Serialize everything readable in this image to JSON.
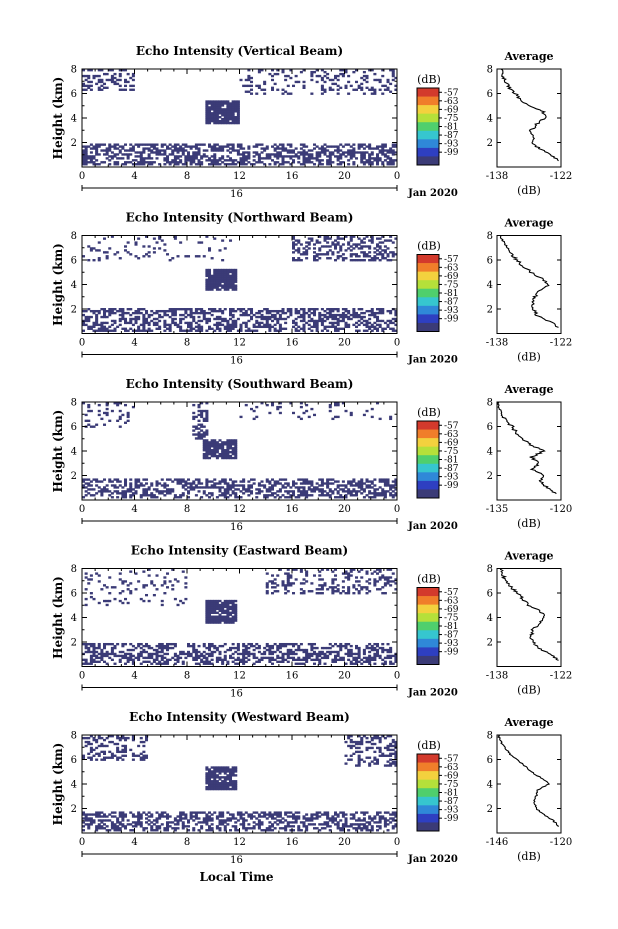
{
  "figure": {
    "xlabel_common": "Local Time",
    "date_label": "Jan 2020",
    "day_label": "16",
    "cbar_label": "(dB)",
    "avg_title": "Average",
    "avg_xlabel": "(dB)",
    "ylabel": "Height (km)",
    "empty_color": "#ffffff",
    "low_color": "#3b3b77"
  },
  "chart_data": [
    {
      "type": "heatmap",
      "title": "Echo Intensity (Vertical Beam)",
      "xlabel": "",
      "ylabel": "Height (km)",
      "xlim": [
        0,
        24
      ],
      "ylim": [
        0,
        8
      ],
      "x_ticks": [
        "0",
        "4",
        "8",
        "12",
        "16",
        "20",
        "0"
      ],
      "y_ticks": [
        "2",
        "4",
        "6",
        "8"
      ],
      "colorbar": {
        "label": "(dB)",
        "ticks": [
          "-57",
          "-63",
          "-69",
          "-75",
          "-81",
          "-87",
          "-93",
          "-99"
        ]
      },
      "low_regions": [
        {
          "t0": 0,
          "t1": 24,
          "h0": 0.2,
          "h1": 1.9,
          "density": 0.55
        },
        {
          "t0": 9.5,
          "t1": 12,
          "h0": 3.6,
          "h1": 5.5,
          "density": 0.9
        },
        {
          "t0": 0,
          "t1": 4,
          "h0": 6.2,
          "h1": 8,
          "density": 0.35
        },
        {
          "t0": 12,
          "t1": 24,
          "h0": 6.0,
          "h1": 8,
          "density": 0.22
        }
      ],
      "average": {
        "title": "Average",
        "xlabel": "(dB)",
        "x_ticks": [
          "-138",
          "-122"
        ],
        "xlim": [
          -138,
          -122
        ],
        "heights": [
          0.5,
          1.0,
          1.5,
          2.0,
          2.5,
          3.0,
          3.5,
          4.0,
          4.5,
          5.0,
          5.5,
          6.0,
          6.5,
          7.0,
          7.5,
          8.0
        ],
        "values": [
          -122.5,
          -124.5,
          -127.5,
          -129,
          -129,
          -129.5,
          -128,
          -126,
          -126.5,
          -130,
          -132,
          -133.5,
          -135,
          -136,
          -136.5,
          -137
        ]
      }
    },
    {
      "type": "heatmap",
      "title": "Echo Intensity (Northward Beam)",
      "xlabel": "",
      "ylabel": "Height (km)",
      "xlim": [
        0,
        24
      ],
      "ylim": [
        0,
        8
      ],
      "x_ticks": [
        "0",
        "4",
        "8",
        "12",
        "16",
        "20",
        "0"
      ],
      "y_ticks": [
        "2",
        "4",
        "6",
        "8"
      ],
      "colorbar": {
        "label": "(dB)",
        "ticks": [
          "-57",
          "-63",
          "-69",
          "-75",
          "-81",
          "-87",
          "-93",
          "-99"
        ]
      },
      "low_regions": [
        {
          "t0": 0,
          "t1": 24,
          "h0": 0.2,
          "h1": 2.0,
          "density": 0.5
        },
        {
          "t0": 9.5,
          "t1": 11.8,
          "h0": 3.5,
          "h1": 5.2,
          "density": 0.9
        },
        {
          "t0": 16,
          "t1": 24,
          "h0": 6.0,
          "h1": 8,
          "density": 0.35
        },
        {
          "t0": 0,
          "t1": 12,
          "h0": 6.0,
          "h1": 8,
          "density": 0.08
        }
      ],
      "average": {
        "title": "Average",
        "xlabel": "(dB)",
        "x_ticks": [
          "-138",
          "-122"
        ],
        "xlim": [
          -138,
          -122
        ],
        "heights": [
          0.5,
          1.0,
          1.5,
          2.0,
          2.5,
          3.0,
          3.5,
          4.0,
          4.5,
          5.0,
          5.5,
          6.0,
          6.5,
          7.0,
          7.5,
          8.0
        ],
        "values": [
          -122.5,
          -125,
          -128,
          -129,
          -129,
          -128.5,
          -127.5,
          -125,
          -127,
          -129.5,
          -131.5,
          -133,
          -134.5,
          -135.5,
          -136.5,
          -137
        ]
      }
    },
    {
      "type": "heatmap",
      "title": "Echo Intensity (Southward Beam)",
      "xlabel": "",
      "ylabel": "Height (km)",
      "xlim": [
        0,
        24
      ],
      "ylim": [
        0,
        8
      ],
      "x_ticks": [
        "0",
        "4",
        "8",
        "12",
        "16",
        "20",
        "0"
      ],
      "y_ticks": [
        "2",
        "4",
        "6",
        "8"
      ],
      "colorbar": {
        "label": "(dB)",
        "ticks": [
          "-57",
          "-63",
          "-69",
          "-75",
          "-81",
          "-87",
          "-93",
          "-99"
        ]
      },
      "low_regions": [
        {
          "t0": 0,
          "t1": 24,
          "h0": 0.2,
          "h1": 1.8,
          "density": 0.5
        },
        {
          "t0": 9.2,
          "t1": 11.7,
          "h0": 3.3,
          "h1": 5.0,
          "density": 0.85
        },
        {
          "t0": 8.5,
          "t1": 9.5,
          "h0": 5.0,
          "h1": 8,
          "density": 0.45
        },
        {
          "t0": 0,
          "t1": 4,
          "h0": 6.0,
          "h1": 8,
          "density": 0.18
        },
        {
          "t0": 12,
          "t1": 24,
          "h0": 6.5,
          "h1": 8,
          "density": 0.08
        }
      ],
      "average": {
        "title": "Average",
        "xlabel": "(dB)",
        "x_ticks": [
          "-135",
          "-120"
        ],
        "xlim": [
          -135,
          -120
        ],
        "heights": [
          0.5,
          1.0,
          1.5,
          2.0,
          2.5,
          3.0,
          3.5,
          4.0,
          4.5,
          5.0,
          5.5,
          6.0,
          6.5,
          7.0,
          7.5,
          8.0
        ],
        "values": [
          -121,
          -123,
          -125,
          -124,
          -127,
          -125,
          -127,
          -124,
          -127,
          -129,
          -130.5,
          -131.5,
          -133,
          -134,
          -134.5,
          -135
        ]
      }
    },
    {
      "type": "heatmap",
      "title": "Echo Intensity (Eastward Beam)",
      "xlabel": "",
      "ylabel": "Height (km)",
      "xlim": [
        0,
        24
      ],
      "ylim": [
        0,
        8
      ],
      "x_ticks": [
        "0",
        "4",
        "8",
        "12",
        "16",
        "20",
        "0"
      ],
      "y_ticks": [
        "2",
        "4",
        "6",
        "8"
      ],
      "colorbar": {
        "label": "(dB)",
        "ticks": [
          "-57",
          "-63",
          "-69",
          "-75",
          "-81",
          "-87",
          "-93",
          "-99"
        ]
      },
      "low_regions": [
        {
          "t0": 0,
          "t1": 24,
          "h0": 0.2,
          "h1": 1.9,
          "density": 0.5
        },
        {
          "t0": 9.5,
          "t1": 11.8,
          "h0": 3.6,
          "h1": 5.5,
          "density": 0.9
        },
        {
          "t0": 14,
          "t1": 24,
          "h0": 6.0,
          "h1": 8,
          "density": 0.3
        },
        {
          "t0": 0,
          "t1": 8,
          "h0": 5.0,
          "h1": 8,
          "density": 0.12
        }
      ],
      "average": {
        "title": "Average",
        "xlabel": "(dB)",
        "x_ticks": [
          "-138",
          "-122"
        ],
        "xlim": [
          -138,
          -122
        ],
        "heights": [
          0.5,
          1.0,
          1.5,
          2.0,
          2.5,
          3.0,
          3.5,
          4.0,
          4.5,
          5.0,
          5.5,
          6.0,
          6.5,
          7.0,
          7.5,
          8.0
        ],
        "values": [
          -122.5,
          -124.5,
          -127.5,
          -129,
          -129.5,
          -129,
          -127.5,
          -126,
          -127,
          -130,
          -131.5,
          -133,
          -134.5,
          -136,
          -136.5,
          -137
        ]
      }
    },
    {
      "type": "heatmap",
      "title": "Echo Intensity (Westward Beam)",
      "xlabel": "Local Time",
      "ylabel": "Height (km)",
      "xlim": [
        0,
        24
      ],
      "ylim": [
        0,
        8
      ],
      "x_ticks": [
        "0",
        "4",
        "8",
        "12",
        "16",
        "20",
        "0"
      ],
      "y_ticks": [
        "2",
        "4",
        "6",
        "8"
      ],
      "colorbar": {
        "label": "(dB)",
        "ticks": [
          "-57",
          "-63",
          "-69",
          "-75",
          "-81",
          "-87",
          "-93",
          "-99"
        ]
      },
      "low_regions": [
        {
          "t0": 0,
          "t1": 24,
          "h0": 0.2,
          "h1": 1.8,
          "density": 0.5
        },
        {
          "t0": 9.5,
          "t1": 11.8,
          "h0": 3.6,
          "h1": 5.5,
          "density": 0.9
        },
        {
          "t0": 0,
          "t1": 5,
          "h0": 6.0,
          "h1": 8,
          "density": 0.3
        },
        {
          "t0": 20,
          "t1": 24,
          "h0": 5.5,
          "h1": 8,
          "density": 0.4
        }
      ],
      "average": {
        "title": "Average",
        "xlabel": "(dB)",
        "x_ticks": [
          "-146",
          "-120"
        ],
        "xlim": [
          -146,
          -120
        ],
        "heights": [
          0.5,
          1.0,
          1.5,
          2.0,
          2.5,
          3.0,
          3.5,
          4.0,
          4.5,
          5.0,
          5.5,
          6.0,
          6.5,
          7.0,
          7.5,
          8.0
        ],
        "values": [
          -121,
          -123,
          -127,
          -130,
          -131,
          -130,
          -129.5,
          -125,
          -128,
          -132,
          -135,
          -138,
          -141,
          -143,
          -144.5,
          -145.5
        ]
      }
    }
  ]
}
